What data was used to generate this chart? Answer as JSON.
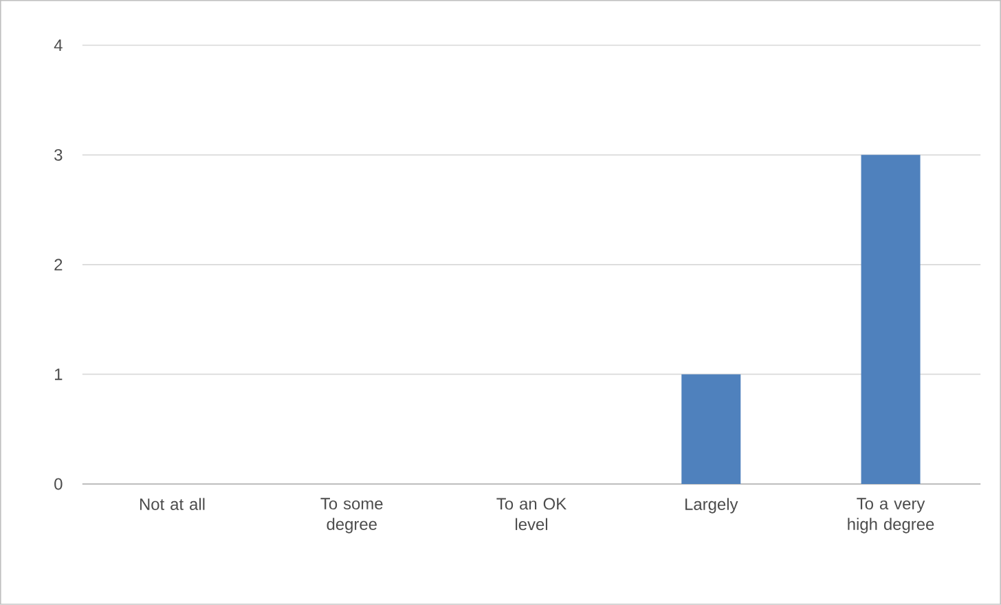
{
  "chart_data": {
    "type": "bar",
    "categories": [
      "Not at all",
      "To some degree",
      "To an OK level",
      "Largely",
      "To a very high degree"
    ],
    "values": [
      0,
      0,
      0,
      1,
      3
    ],
    "color": "#4f81bd",
    "ylim": [
      0,
      4
    ],
    "yticks": [
      0,
      1,
      2,
      3,
      4
    ],
    "grid": "y"
  }
}
